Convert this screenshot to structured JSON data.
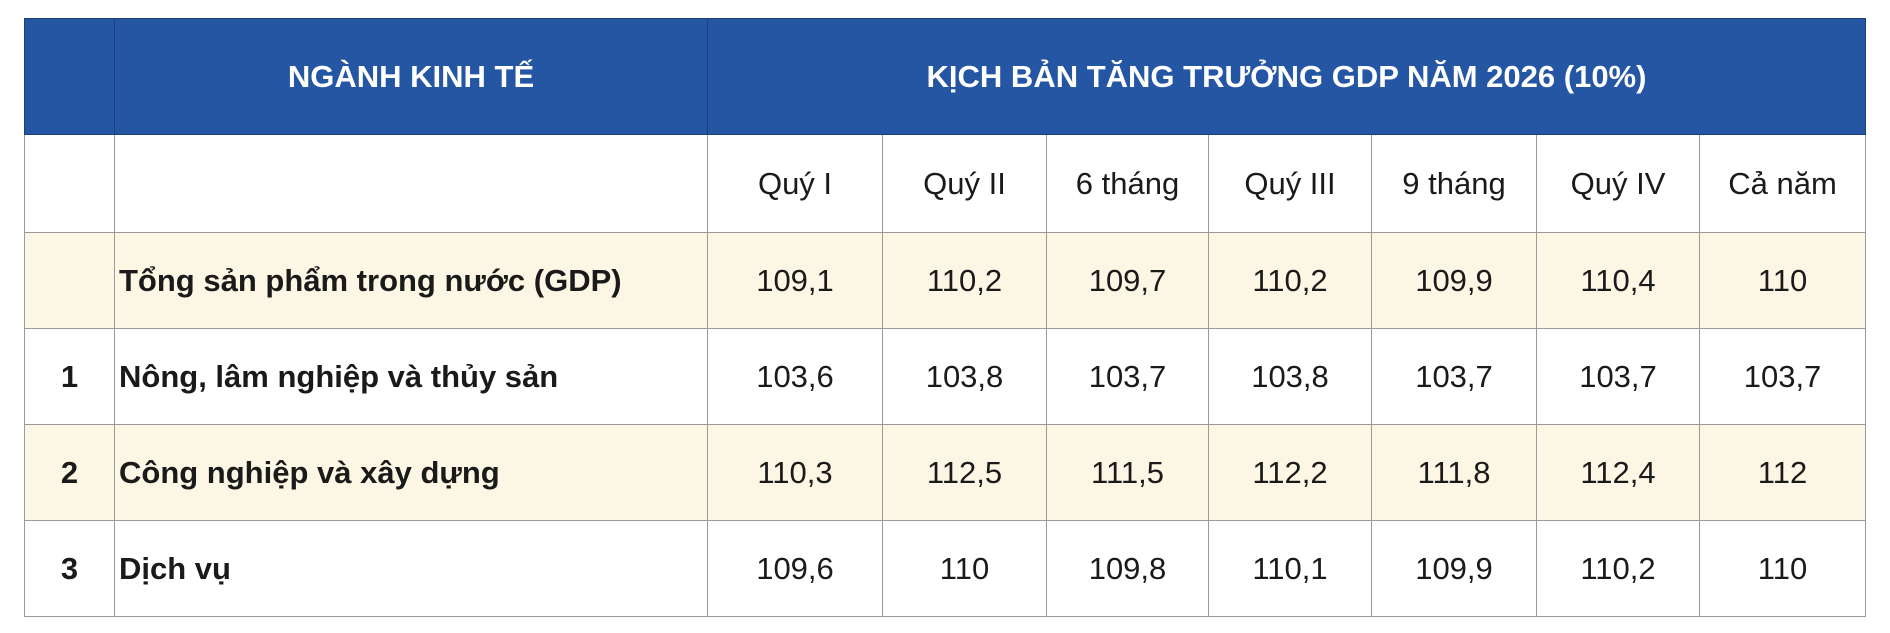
{
  "header": {
    "sector": "NGÀNH KINH TẾ",
    "scenario": "KỊCH BẢN TĂNG TRƯỞNG GDP NĂM 2026 (10%)"
  },
  "columns": [
    "Quý I",
    "Quý II",
    "6 tháng",
    "Quý III",
    "9 tháng",
    "Quý IV",
    "Cả năm"
  ],
  "rows": [
    {
      "label": "Tổng sản phẩm trong nước (GDP)",
      "values": [
        "109,1",
        "110,2",
        "109,7",
        "110,2",
        "109,9",
        "110,4",
        "110"
      ]
    },
    {
      "index": "1",
      "label": "Nông, lâm nghiệp và thủy sản",
      "values": [
        "103,6",
        "103,8",
        "103,7",
        "103,8",
        "103,7",
        "103,7",
        "103,7"
      ]
    },
    {
      "index": "2",
      "label": "Công nghiệp và xây dựng",
      "values": [
        "110,3",
        "112,5",
        "111,5",
        "112,2",
        "111,8",
        "112,4",
        "112"
      ]
    },
    {
      "index": "3",
      "label": "Dịch vụ",
      "values": [
        "109,6",
        "110",
        "109,8",
        "110,1",
        "109,9",
        "110,2",
        "110"
      ]
    }
  ]
}
